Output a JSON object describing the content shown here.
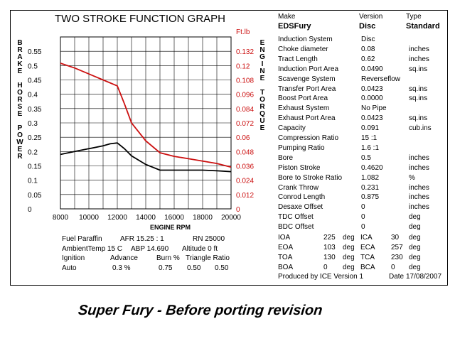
{
  "colors": {
    "torque": "#cc1111",
    "power": "#000000",
    "right_axis_text": "#cc1111"
  },
  "chart_data": {
    "type": "line",
    "title": "TWO STROKE FUNCTION GRAPH",
    "xlabel": "ENGINE RPM",
    "ylabel_left": "BRAKE HORSE POWER",
    "ylabel_right": "ENGINE TORQUE",
    "right_unit": "Ft.lb",
    "xlim": [
      8000,
      20000
    ],
    "ylim_left": [
      0,
      0.6
    ],
    "ylim_right": [
      0,
      0.144
    ],
    "grid": true,
    "x_ticks": [
      "8000",
      "10000",
      "12000",
      "14000",
      "16000",
      "18000",
      "20000"
    ],
    "y_left_ticks": [
      "0",
      "0.05",
      "0.1",
      "0.15",
      "0.2",
      "0.25",
      "0.3",
      "0.35",
      "0.4",
      "0.45",
      "0.5",
      "0.55"
    ],
    "y_right_ticks": [
      "0",
      "0.012",
      "0.024",
      "0.036",
      "0.048",
      "0.06",
      "0.072",
      "0.084",
      "0.096",
      "0.108",
      "0.12",
      "0.132"
    ],
    "series": [
      {
        "axis": "left",
        "color": "#000000",
        "x": [
          8000,
          9000,
          10000,
          11000,
          11500,
          12000,
          12500,
          13000,
          14000,
          15000,
          16000,
          17000,
          18000,
          19000,
          20000
        ],
        "y": [
          0.19,
          0.2,
          0.21,
          0.22,
          0.227,
          0.23,
          0.21,
          0.185,
          0.155,
          0.135,
          0.135,
          0.135,
          0.135,
          0.133,
          0.13
        ]
      },
      {
        "axis": "right",
        "color": "#cc1111",
        "x": [
          8000,
          9000,
          10000,
          11000,
          12000,
          12500,
          13000,
          14000,
          15000,
          16000,
          17000,
          18000,
          19000,
          20000
        ],
        "y": [
          0.122,
          0.118,
          0.113,
          0.108,
          0.103,
          0.088,
          0.072,
          0.057,
          0.047,
          0.044,
          0.042,
          0.04,
          0.038,
          0.035
        ]
      }
    ]
  },
  "run_info": {
    "row1": {
      "fuel": "Fuel Paraffin",
      "afr": "AFR 15.25 : 1",
      "rn": "RN 25000"
    },
    "row2": {
      "ambient": "AmbientTemp 15 C",
      "abp": "ABP 14.690",
      "altitude": "Altitude 0 ft"
    },
    "headers": [
      "Ignition",
      "Advance",
      "Burn %",
      "Triangle Ratio"
    ],
    "values": [
      "Auto",
      "0.3 %",
      "0.75",
      "0.50",
      "0.50"
    ]
  },
  "spec_header": {
    "make_label": "Make",
    "version_label": "Version",
    "type_label": "Type",
    "make": "EDSFury",
    "version": "Disc",
    "type": "Standard"
  },
  "specs": [
    {
      "label": "Induction System",
      "value": "Disc",
      "unit": ""
    },
    {
      "label": "Choke diameter",
      "value": "0.08",
      "unit": "inches"
    },
    {
      "label": "Tract Length",
      "value": "0.62",
      "unit": "inches"
    },
    {
      "label": "Induction Port Area",
      "value": "0.0490",
      "unit": "sq.ins"
    },
    {
      "label": "Scavenge System",
      "value": "Reverseflow",
      "unit": ""
    },
    {
      "label": "Transfer Port Area",
      "value": "0.0423",
      "unit": "sq.ins"
    },
    {
      "label": "Boost Port Area",
      "value": "0.0000",
      "unit": "sq.ins"
    },
    {
      "label": "Exhaust System",
      "value": "No Pipe",
      "unit": ""
    },
    {
      "label": "Exhaust Port Area",
      "value": "0.0423",
      "unit": "sq.ins"
    },
    {
      "label": "Capacity",
      "value": "0.091",
      "unit": "cub.ins"
    },
    {
      "label": "Compression Ratio",
      "value": "15 :1",
      "unit": ""
    },
    {
      "label": "Pumping Ratio",
      "value": "1.6 :1",
      "unit": ""
    },
    {
      "label": "Bore",
      "value": "0.5",
      "unit": "inches"
    },
    {
      "label": "Piston Stroke",
      "value": "0.4620",
      "unit": "inches"
    },
    {
      "label": "Bore to Stroke Ratio",
      "value": "1.082",
      "unit": "%"
    },
    {
      "label": "Crank Throw",
      "value": "0.231",
      "unit": "inches"
    },
    {
      "label": "Conrod Length",
      "value": "0.875",
      "unit": "inches"
    },
    {
      "label": "Desaxe Offset",
      "value": "0",
      "unit": "inches"
    },
    {
      "label": "TDC Offset",
      "value": "0",
      "unit": "deg"
    },
    {
      "label": "BDC Offset",
      "value": "0",
      "unit": "deg"
    }
  ],
  "timing": [
    {
      "a_label": "IOA",
      "a_value": "225",
      "a_unit": "deg",
      "b_label": "ICA",
      "b_value": "30",
      "b_unit": "deg"
    },
    {
      "a_label": "EOA",
      "a_value": "103",
      "a_unit": "deg",
      "b_label": "ECA",
      "b_value": "257",
      "b_unit": "deg"
    },
    {
      "a_label": "TOA",
      "a_value": "130",
      "a_unit": "deg",
      "b_label": "TCA",
      "b_value": "230",
      "b_unit": "deg"
    },
    {
      "a_label": "BOA",
      "a_value": "0",
      "a_unit": "deg",
      "b_label": "BCA",
      "b_value": "0",
      "b_unit": "deg"
    }
  ],
  "footer": {
    "produced_by": "Produced by ICE Version 1",
    "date_label": "Date",
    "date": "17/08/2007"
  },
  "caption": "Super Fury - Before porting revision"
}
